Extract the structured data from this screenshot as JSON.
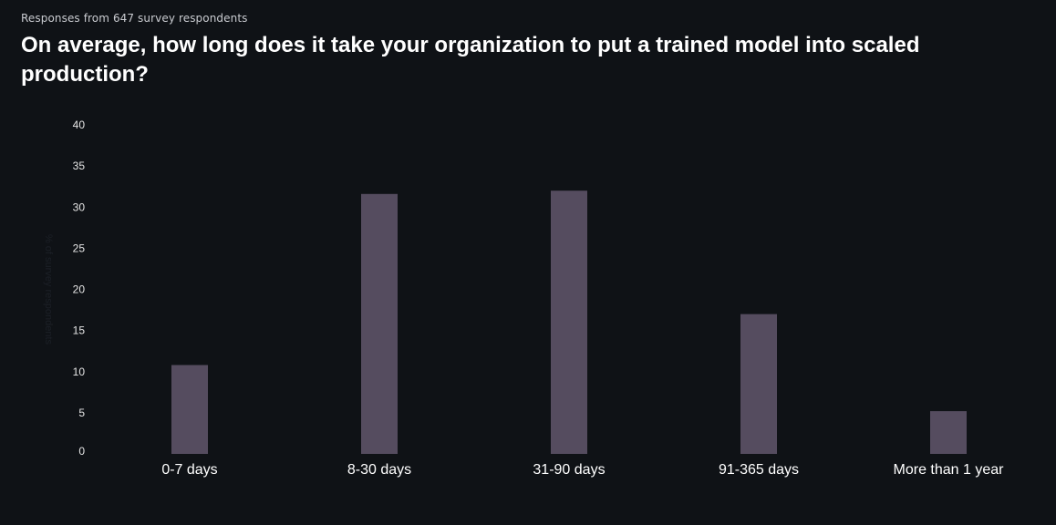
{
  "subtitle": "Responses from 647 survey respondents",
  "title": "On average, how long does it take your organization to put a trained model into scaled production?",
  "chart_data": {
    "type": "bar",
    "categories": [
      "0-7 days",
      "8-30 days",
      "31-90 days",
      "91-365 days",
      "More than 1 year"
    ],
    "values": [
      10.8,
      31.6,
      32.0,
      17.0,
      5.2
    ],
    "ylabel": "% of survey respondents",
    "ylim": [
      0,
      40
    ],
    "yticks": [
      0,
      5,
      10,
      15,
      20,
      25,
      30,
      35,
      40
    ],
    "grid": false,
    "colors": {
      "bar": "#554c5f",
      "background": "#0f1216"
    }
  }
}
